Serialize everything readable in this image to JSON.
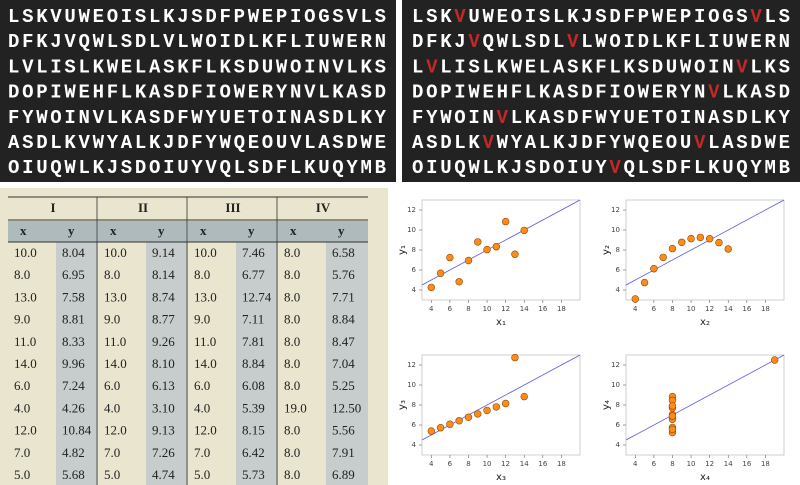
{
  "letter_grid": {
    "rows": [
      "LSKVUWEOISLKJSDFPWEPIOGSVLS",
      "DFKJVQWLSDLVLWOIDLKFLIUWERN",
      "LVLISLKWELASKFLKSDUWOINVLKS",
      "DOPIWEHFLKASDFIOWERYNVLKASD",
      "FYWOINVLKASDFWYUETOINASDLKY",
      "ASDLKVWYALKJDFYWQEOUVLASDWE",
      "OIUQWLKJSDOIUYVQLSDFLKUQYMB"
    ],
    "highlight": "V",
    "highlight_color": "#c0282a"
  },
  "table": {
    "groups": [
      "I",
      "II",
      "III",
      "IV"
    ],
    "columns": [
      "x",
      "y"
    ],
    "rows": [
      [
        "10.0",
        "8.04",
        "10.0",
        "9.14",
        "10.0",
        "7.46",
        "8.0",
        "6.58"
      ],
      [
        "8.0",
        "6.95",
        "8.0",
        "8.14",
        "8.0",
        "6.77",
        "8.0",
        "5.76"
      ],
      [
        "13.0",
        "7.58",
        "13.0",
        "8.74",
        "13.0",
        "12.74",
        "8.0",
        "7.71"
      ],
      [
        "9.0",
        "8.81",
        "9.0",
        "8.77",
        "9.0",
        "7.11",
        "8.0",
        "8.84"
      ],
      [
        "11.0",
        "8.33",
        "11.0",
        "9.26",
        "11.0",
        "7.81",
        "8.0",
        "8.47"
      ],
      [
        "14.0",
        "9.96",
        "14.0",
        "8.10",
        "14.0",
        "8.84",
        "8.0",
        "7.04"
      ],
      [
        "6.0",
        "7.24",
        "6.0",
        "6.13",
        "6.0",
        "6.08",
        "8.0",
        "5.25"
      ],
      [
        "4.0",
        "4.26",
        "4.0",
        "3.10",
        "4.0",
        "5.39",
        "19.0",
        "12.50"
      ],
      [
        "12.0",
        "10.84",
        "12.0",
        "9.13",
        "12.0",
        "8.15",
        "8.0",
        "5.56"
      ],
      [
        "7.0",
        "4.82",
        "7.0",
        "7.26",
        "7.0",
        "6.42",
        "8.0",
        "7.91"
      ],
      [
        "5.0",
        "5.68",
        "5.0",
        "4.74",
        "5.0",
        "5.73",
        "8.0",
        "6.89"
      ]
    ]
  },
  "chart_data": [
    {
      "type": "scatter",
      "xlabel": "x₁",
      "ylabel": "y₁",
      "x": [
        10,
        8,
        13,
        9,
        11,
        14,
        6,
        4,
        12,
        7,
        5
      ],
      "y": [
        8.04,
        6.95,
        7.58,
        8.81,
        8.33,
        9.96,
        7.24,
        4.26,
        10.84,
        4.82,
        5.68
      ],
      "xlim": [
        3,
        20
      ],
      "ylim": [
        3,
        13
      ],
      "xticks": [
        4,
        6,
        8,
        10,
        12,
        14,
        16,
        18
      ],
      "yticks": [
        4,
        6,
        8,
        10,
        12
      ],
      "color": "#ff8c1a",
      "line_color": "#5a5ae6",
      "fit_intercept": 3,
      "fit_slope": 0.5
    },
    {
      "type": "scatter",
      "xlabel": "x₂",
      "ylabel": "y₂",
      "x": [
        10,
        8,
        13,
        9,
        11,
        14,
        6,
        4,
        12,
        7,
        5
      ],
      "y": [
        9.14,
        8.14,
        8.74,
        8.77,
        9.26,
        8.1,
        6.13,
        3.1,
        9.13,
        7.26,
        4.74
      ],
      "xlim": [
        3,
        20
      ],
      "ylim": [
        3,
        13
      ],
      "xticks": [
        4,
        6,
        8,
        10,
        12,
        14,
        16,
        18
      ],
      "yticks": [
        4,
        6,
        8,
        10,
        12
      ],
      "color": "#ff8c1a",
      "line_color": "#5a5ae6",
      "fit_intercept": 3,
      "fit_slope": 0.5
    },
    {
      "type": "scatter",
      "xlabel": "x₃",
      "ylabel": "y₃",
      "x": [
        10,
        8,
        13,
        9,
        11,
        14,
        6,
        4,
        12,
        7,
        5
      ],
      "y": [
        7.46,
        6.77,
        12.74,
        7.11,
        7.81,
        8.84,
        6.08,
        5.39,
        8.15,
        6.42,
        5.73
      ],
      "xlim": [
        3,
        20
      ],
      "ylim": [
        3,
        13
      ],
      "xticks": [
        4,
        6,
        8,
        10,
        12,
        14,
        16,
        18
      ],
      "yticks": [
        4,
        6,
        8,
        10,
        12
      ],
      "color": "#ff8c1a",
      "line_color": "#5a5ae6",
      "fit_intercept": 3,
      "fit_slope": 0.5
    },
    {
      "type": "scatter",
      "xlabel": "x₄",
      "ylabel": "y₄",
      "x": [
        8,
        8,
        8,
        8,
        8,
        8,
        8,
        19,
        8,
        8,
        8
      ],
      "y": [
        6.58,
        5.76,
        7.71,
        8.84,
        8.47,
        7.04,
        5.25,
        12.5,
        5.56,
        7.91,
        6.89
      ],
      "xlim": [
        3,
        20
      ],
      "ylim": [
        3,
        13
      ],
      "xticks": [
        4,
        6,
        8,
        10,
        12,
        14,
        16,
        18
      ],
      "yticks": [
        4,
        6,
        8,
        10,
        12
      ],
      "color": "#ff8c1a",
      "line_color": "#5a5ae6",
      "fit_intercept": 3,
      "fit_slope": 0.5
    }
  ]
}
